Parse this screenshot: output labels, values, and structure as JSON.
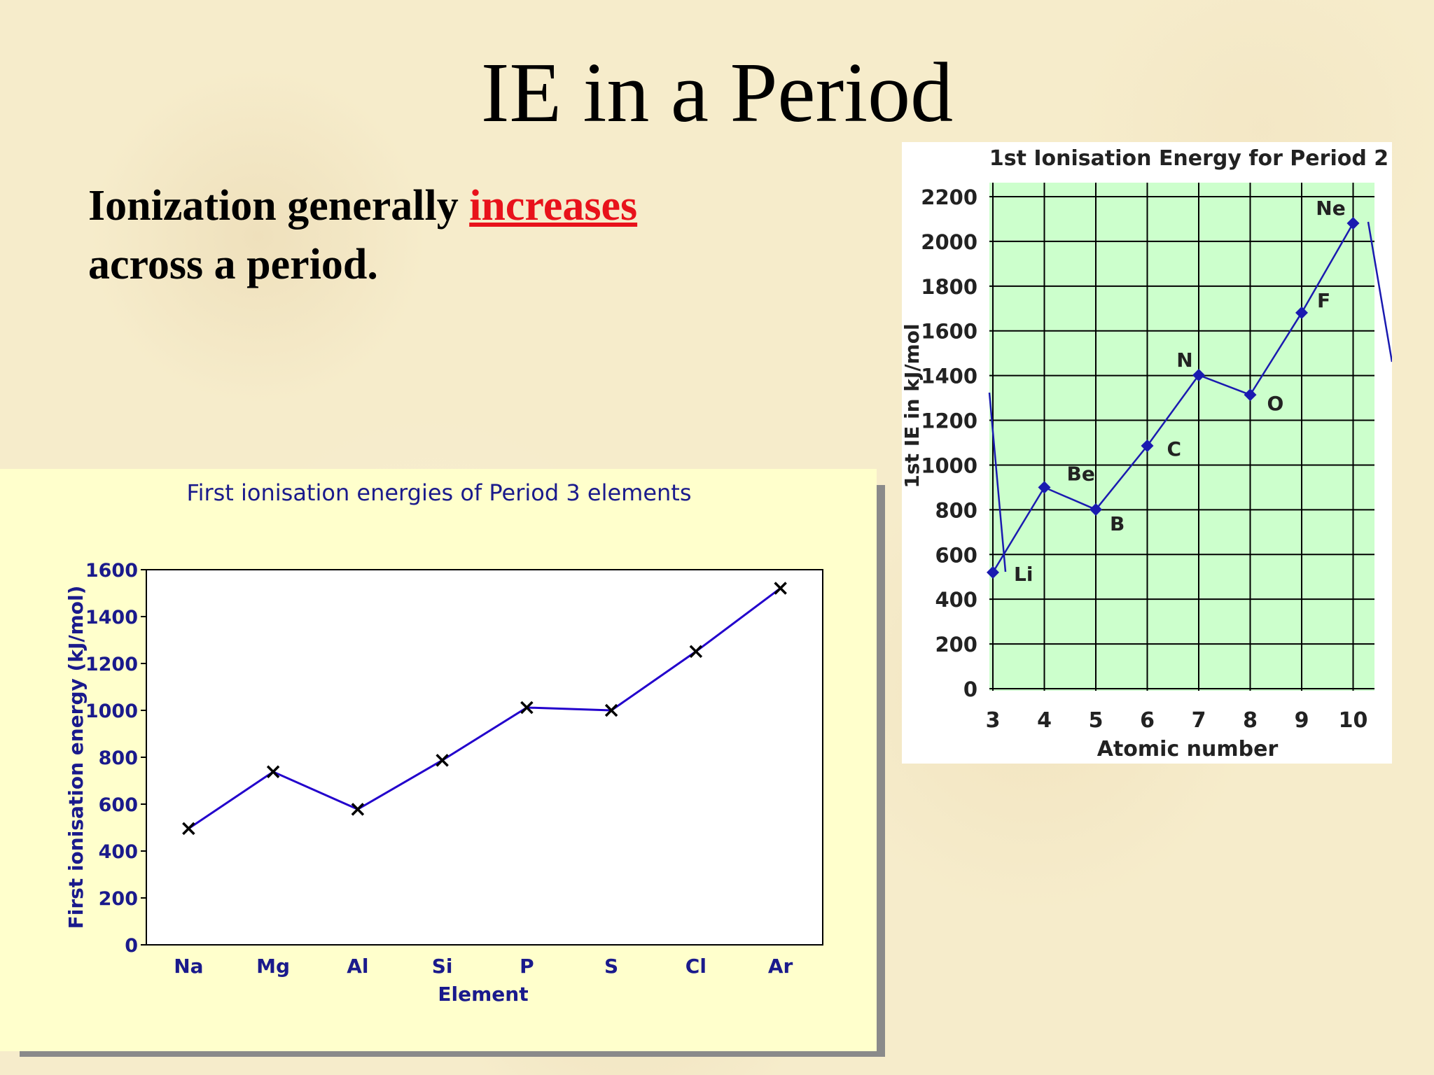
{
  "slide": {
    "title": "IE in a Period",
    "text_before": "Ionization generally ",
    "text_highlight": "increases",
    "text_after": "across a period.",
    "highlight_color": "#e8121b"
  },
  "chart_data": [
    {
      "type": "line",
      "title": "First ionisation energies of Period 3 elements",
      "xlabel": "Element",
      "ylabel": "First ionisation energy (kJ/mol)",
      "categories": [
        "Na",
        "Mg",
        "Al",
        "Si",
        "P",
        "S",
        "Cl",
        "Ar"
      ],
      "values": [
        496,
        738,
        578,
        787,
        1012,
        1000,
        1251,
        1521
      ],
      "ylim": [
        0,
        1600
      ],
      "yticks": [
        0,
        200,
        400,
        600,
        800,
        1000,
        1200,
        1400,
        1600
      ],
      "marker": "x",
      "line_color": "#2200cc",
      "text_color": "#1a1a8c",
      "background": "#ffffcc",
      "grid": false
    },
    {
      "type": "line",
      "title": "1st Ionisation Energy for Period 2",
      "xlabel": "Atomic number",
      "ylabel": "1st IE in kJ/mol",
      "x": [
        3,
        4,
        5,
        6,
        7,
        8,
        9,
        10
      ],
      "values": [
        520,
        900,
        801,
        1086,
        1402,
        1314,
        1681,
        2081
      ],
      "point_labels": [
        "Li",
        "Be",
        "B",
        "C",
        "N",
        "O",
        "F",
        "Ne"
      ],
      "ylim": [
        0,
        2200
      ],
      "yticks": [
        0,
        200,
        400,
        600,
        800,
        1000,
        1200,
        1400,
        1600,
        1800,
        2000,
        2200
      ],
      "xticks": [
        3,
        4,
        5,
        6,
        7,
        8,
        9,
        10
      ],
      "marker": "diamond",
      "line_color": "#1a1ab0",
      "plot_background": "#ccffcc",
      "grid": true
    }
  ]
}
